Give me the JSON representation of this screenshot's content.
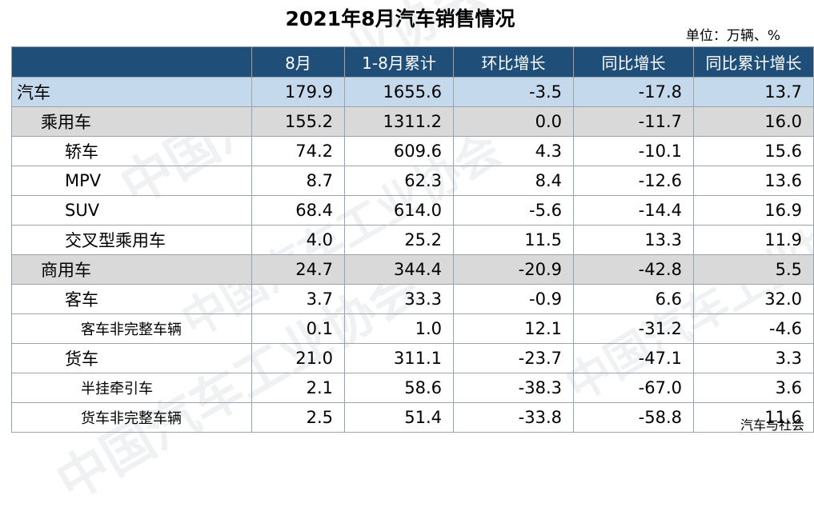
{
  "title": "2021年8月汽车销售情况",
  "unit": "单位：万辆、%",
  "watermark_text": "中国汽车工业协会",
  "headers": [
    "",
    "8月",
    "1-8月累计",
    "环比增长",
    "同比增长",
    "同比累计增长"
  ],
  "rows": [
    {
      "name": "汽车",
      "level": 0,
      "values": [
        "179.9",
        "1655.6",
        "-3.5",
        "-17.8",
        "13.7"
      ]
    },
    {
      "name": "乘用车",
      "level": 1,
      "values": [
        "155.2",
        "1311.2",
        "0.0",
        "-11.7",
        "16.0"
      ]
    },
    {
      "name": "轿车",
      "level": 2,
      "values": [
        "74.2",
        "609.6",
        "4.3",
        "-10.1",
        "15.6"
      ]
    },
    {
      "name": "MPV",
      "level": 2,
      "values": [
        "8.7",
        "62.3",
        "8.4",
        "-12.6",
        "13.6"
      ]
    },
    {
      "name": "SUV",
      "level": 2,
      "values": [
        "68.4",
        "614.0",
        "-5.6",
        "-14.4",
        "16.9"
      ]
    },
    {
      "name": "交叉型乘用车",
      "level": 2,
      "values": [
        "4.0",
        "25.2",
        "11.5",
        "13.3",
        "11.9"
      ]
    },
    {
      "name": "商用车",
      "level": 1,
      "values": [
        "24.7",
        "344.4",
        "-20.9",
        "-42.8",
        "5.5"
      ]
    },
    {
      "name": "客车",
      "level": 2,
      "values": [
        "3.7",
        "33.3",
        "-0.9",
        "6.6",
        "32.0"
      ]
    },
    {
      "name": "客车非完整车辆",
      "level": 3,
      "values": [
        "0.1",
        "1.0",
        "12.1",
        "-31.2",
        "-4.6"
      ]
    },
    {
      "name": "货车",
      "level": 2,
      "values": [
        "21.0",
        "311.1",
        "-23.7",
        "-47.1",
        "3.3"
      ]
    },
    {
      "name": "半挂牵引车",
      "level": 3,
      "values": [
        "2.1",
        "58.6",
        "-38.3",
        "-67.0",
        "3.6"
      ]
    },
    {
      "name": "货车非完整车辆",
      "level": 3,
      "values": [
        "2.5",
        "51.4",
        "-33.8",
        "-58.8",
        "11.6"
      ]
    }
  ],
  "footer": "汽车与社会",
  "colors": {
    "header_bg": "#1f4e79",
    "total_row_bg": "#c5d9ed",
    "sub_row_bg": "#d9d9d9"
  }
}
